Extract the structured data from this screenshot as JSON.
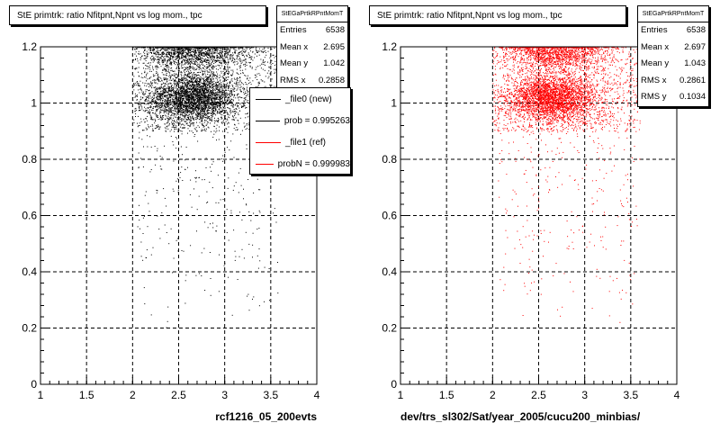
{
  "chart_data": [
    {
      "type": "scatter",
      "title": "StE primtrk: ratio Nfitpnt,Npnt vs log mom., tpc",
      "xlabel": "rcf1216_05_200evts",
      "ylabel": "",
      "xlim": [
        1,
        4
      ],
      "ylim": [
        0,
        1.2
      ],
      "x_ticks": [
        "1",
        "1.5",
        "2",
        "2.5",
        "3",
        "3.5",
        "4"
      ],
      "y_ticks": [
        "0",
        "0.2",
        "0.4",
        "0.6",
        "0.8",
        "1",
        "1.2"
      ],
      "grid": true,
      "marker_color": "#000000",
      "density": {
        "x_range": [
          2.0,
          3.6
        ],
        "core_x_center": 2.65,
        "clusters_y": [
          1.02,
          1.18
        ],
        "tail_y_range": [
          0.2,
          1.0
        ]
      },
      "stats": {
        "name": "StEGaPrtkRPntMomT",
        "rows": [
          {
            "label": "Entries",
            "value": "6538"
          },
          {
            "label": "Mean x",
            "value": "2.695"
          },
          {
            "label": "Mean y",
            "value": "1.042"
          },
          {
            "label": "RMS x",
            "value": "0.2858"
          }
        ]
      },
      "legend": [
        {
          "label": "_file0 (new)",
          "color": "#000000"
        },
        {
          "label": "prob = 0.995263",
          "color": "#000000"
        },
        {
          "label": "_file1 (ref)",
          "color": "#ff0000"
        },
        {
          "label": "probN = 0.999983",
          "color": "#ff0000"
        }
      ]
    },
    {
      "type": "scatter",
      "title": "StE primtrk: ratio Nfitpnt,Npnt vs log mom., tpc",
      "xlabel": "dev/trs_sl302/Sat/year_2005/cucu200_minbias/",
      "ylabel": "",
      "xlim": [
        1,
        4
      ],
      "ylim": [
        0,
        1.2
      ],
      "x_ticks": [
        "1",
        "1.5",
        "2",
        "2.5",
        "3",
        "3.5",
        "4"
      ],
      "y_ticks": [
        "0",
        "0.2",
        "0.4",
        "0.6",
        "0.8",
        "1",
        "1.2"
      ],
      "grid": true,
      "marker_color": "#ff0000",
      "density": {
        "x_range": [
          2.0,
          3.6
        ],
        "core_x_center": 2.65,
        "clusters_y": [
          1.02,
          1.18
        ],
        "tail_y_range": [
          0.2,
          1.0
        ]
      },
      "stats": {
        "name": "StEGaPrtkRPntMomT",
        "rows": [
          {
            "label": "Entries",
            "value": "6538"
          },
          {
            "label": "Mean x",
            "value": "2.697"
          },
          {
            "label": "Mean y",
            "value": "1.043"
          },
          {
            "label": "RMS x",
            "value": "0.2861"
          },
          {
            "label": "RMS y",
            "value": "0.1034"
          }
        ]
      }
    }
  ]
}
